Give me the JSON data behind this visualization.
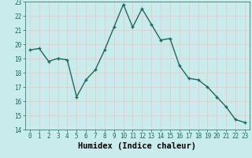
{
  "x": [
    0,
    1,
    2,
    3,
    4,
    5,
    6,
    7,
    8,
    9,
    10,
    11,
    12,
    13,
    14,
    15,
    16,
    17,
    18,
    19,
    20,
    21,
    22,
    23
  ],
  "y": [
    19.6,
    19.7,
    18.8,
    19.0,
    18.9,
    16.3,
    17.5,
    18.2,
    19.6,
    21.2,
    22.8,
    21.2,
    22.5,
    21.4,
    20.3,
    20.4,
    18.5,
    17.6,
    17.5,
    17.0,
    16.3,
    15.6,
    14.7,
    14.5
  ],
  "line_color": "#1a6b5e",
  "marker": "+",
  "bg_color": "#c8ecec",
  "grid_color": "#f0c8c8",
  "xlabel": "Humidex (Indice chaleur)",
  "xlim": [
    -0.5,
    23.5
  ],
  "ylim": [
    14,
    23
  ],
  "yticks": [
    14,
    15,
    16,
    17,
    18,
    19,
    20,
    21,
    22,
    23
  ],
  "xticks": [
    0,
    1,
    2,
    3,
    4,
    5,
    6,
    7,
    8,
    9,
    10,
    11,
    12,
    13,
    14,
    15,
    16,
    17,
    18,
    19,
    20,
    21,
    22,
    23
  ],
  "tick_fontsize": 5.5,
  "xlabel_fontsize": 7.5,
  "linewidth": 1.0,
  "markersize": 3,
  "markeredgewidth": 1.0
}
